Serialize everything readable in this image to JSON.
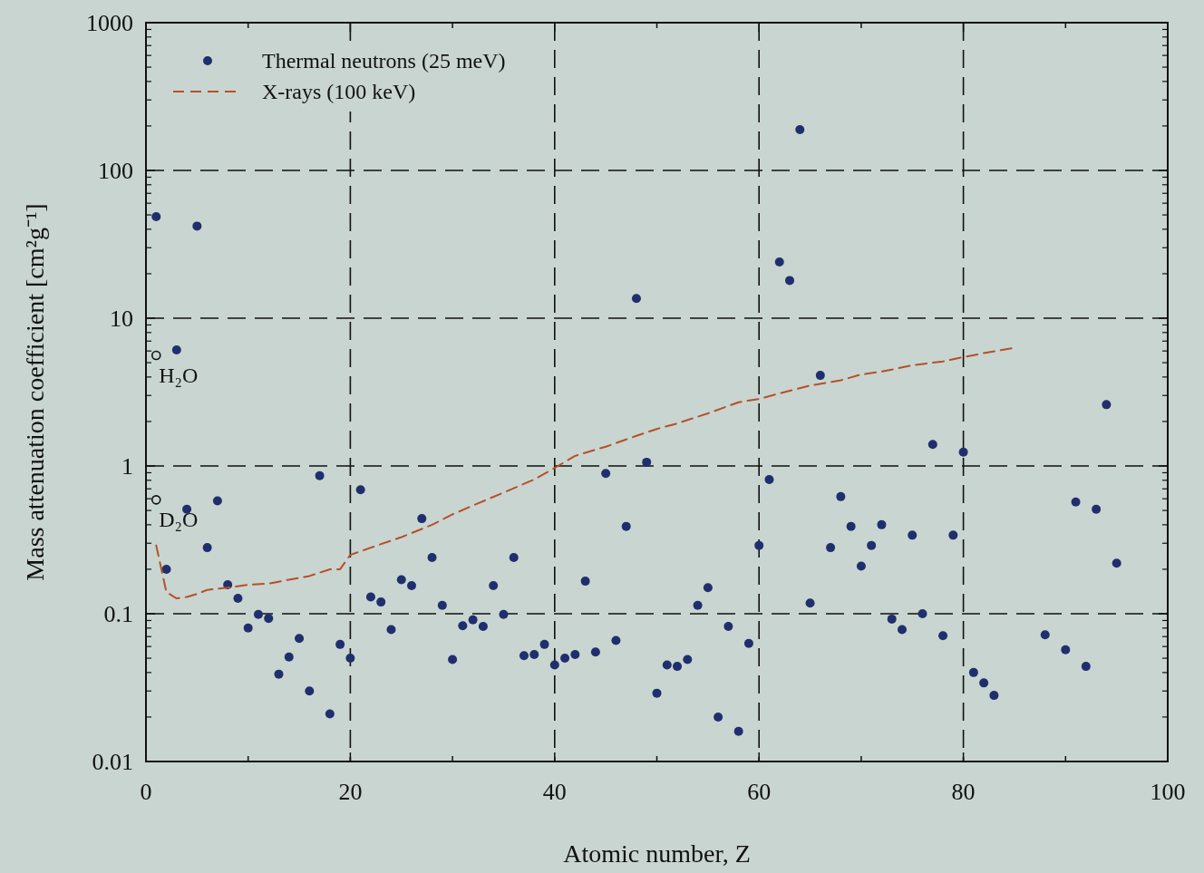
{
  "chart_data": {
    "type": "scatter",
    "xlabel": "Atomic number, Z",
    "ylabel": "Mass attenuation coefficient [cm²g⁻¹]",
    "log": "y",
    "grid": true,
    "legend": "top left",
    "xlim": [
      0,
      100
    ],
    "xticks": [
      0,
      {
        "value": 10,
        "label": null
      },
      20,
      {
        "value": 30,
        "label": null
      },
      40,
      {
        "value": 50,
        "label": null
      },
      60,
      {
        "value": 70,
        "label": null
      },
      80,
      {
        "value": 90,
        "label": null
      },
      100
    ],
    "ylim": [
      0.01,
      1000
    ],
    "yticks": [
      0.01,
      0.1,
      1,
      10,
      100,
      1000
    ],
    "series": [
      {
        "name": "Thermal neutrons (25 meV)",
        "marker": "circle",
        "color": "#1f2f6e",
        "x": [
          1,
          2,
          3,
          4,
          5,
          6,
          7,
          8,
          9,
          10,
          11,
          12,
          13,
          14,
          15,
          16,
          17,
          18,
          19,
          20,
          21,
          22,
          23,
          24,
          25,
          26,
          27,
          28,
          29,
          30,
          31,
          32,
          33,
          34,
          35,
          36,
          37,
          38,
          39,
          40,
          41,
          42,
          43,
          44,
          45,
          46,
          47,
          48,
          49,
          50,
          51,
          52,
          53,
          54,
          55,
          56,
          57,
          58,
          59,
          60,
          61,
          62,
          63,
          64,
          65,
          66,
          67,
          68,
          69,
          70,
          71,
          72,
          73,
          74,
          75,
          76,
          77,
          78,
          79,
          80,
          81,
          82,
          83,
          88,
          90,
          91,
          92,
          93,
          94,
          95
        ],
        "values": [
          48.7,
          0.2,
          6.1,
          0.51,
          42,
          0.28,
          0.58,
          0.157,
          0.127,
          0.08,
          0.099,
          0.093,
          0.039,
          0.051,
          0.068,
          0.03,
          0.86,
          0.021,
          0.062,
          0.05,
          0.69,
          0.13,
          0.12,
          0.078,
          0.17,
          0.155,
          0.44,
          0.24,
          0.114,
          0.049,
          0.083,
          0.091,
          0.082,
          0.155,
          0.099,
          0.24,
          0.052,
          0.053,
          0.062,
          0.045,
          0.05,
          0.053,
          0.166,
          0.055,
          0.89,
          0.066,
          0.39,
          13.6,
          1.06,
          0.029,
          0.045,
          0.044,
          0.049,
          0.114,
          0.15,
          0.02,
          0.082,
          0.016,
          0.063,
          0.29,
          0.81,
          24,
          18,
          189,
          0.118,
          4.1,
          0.28,
          0.62,
          0.39,
          0.21,
          0.29,
          0.4,
          0.092,
          0.078,
          0.34,
          0.1,
          1.4,
          0.071,
          0.34,
          1.24,
          0.04,
          0.034,
          0.028,
          0.072,
          0.057,
          0.57,
          0.044,
          0.51,
          2.6,
          0.22
        ]
      },
      {
        "name": "X-rays (100 keV)",
        "type": "line",
        "line_style": "dashed",
        "color": "#b5502a",
        "x": [
          1,
          2,
          3,
          4,
          5,
          6,
          8,
          10,
          12,
          14,
          16,
          18,
          19,
          20,
          22,
          25,
          28,
          30,
          32,
          35,
          38,
          40,
          42,
          45,
          48,
          50,
          52,
          55,
          58,
          60,
          62,
          65,
          68,
          70,
          72,
          75,
          78,
          80,
          82,
          85
        ],
        "values": [
          0.29,
          0.14,
          0.127,
          0.13,
          0.136,
          0.145,
          0.15,
          0.157,
          0.16,
          0.17,
          0.18,
          0.2,
          0.2,
          0.25,
          0.28,
          0.33,
          0.4,
          0.47,
          0.54,
          0.66,
          0.81,
          0.97,
          1.17,
          1.35,
          1.6,
          1.78,
          1.94,
          2.27,
          2.7,
          2.84,
          3.1,
          3.5,
          3.8,
          4.16,
          4.35,
          4.8,
          5.1,
          5.45,
          5.8,
          6.3
        ]
      }
    ],
    "annotations": [
      {
        "text": "H₂O",
        "x": 1,
        "y": 5.6
      },
      {
        "text": "D₂O",
        "x": 1,
        "y": 0.59
      }
    ]
  }
}
